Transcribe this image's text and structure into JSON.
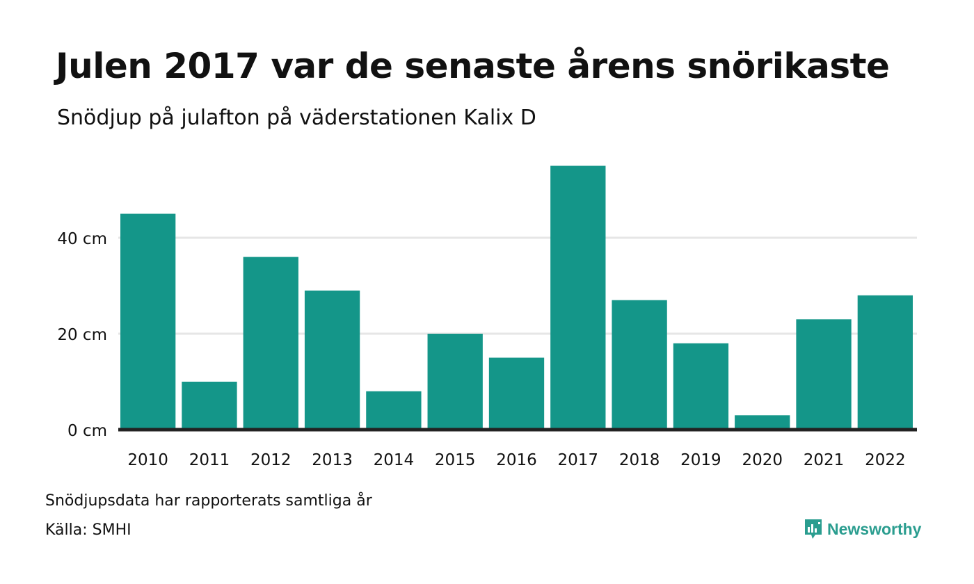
{
  "header": {
    "title": "Julen 2017 var de senaste årens snörikaste",
    "subtitle": "Snödjup på julafton på väderstationen Kalix D"
  },
  "footer": {
    "note": "Snödjupsdata har rapporterats samtliga år",
    "source": "Källa: SMHI",
    "brand": "Newsworthy"
  },
  "colors": {
    "bar": "#149689",
    "baseline": "#222222",
    "grid": "#e6e6e6",
    "brand": "#2a9d8f"
  },
  "chart_data": {
    "type": "bar",
    "categories": [
      "2010",
      "2011",
      "2012",
      "2013",
      "2014",
      "2015",
      "2016",
      "2017",
      "2018",
      "2019",
      "2020",
      "2021",
      "2022"
    ],
    "values": [
      45,
      10,
      36,
      29,
      8,
      20,
      15,
      55,
      27,
      18,
      3,
      23,
      28
    ],
    "unit": "cm",
    "yticks": [
      0,
      20,
      40
    ],
    "ytick_labels": [
      "0 cm",
      "20 cm",
      "40 cm"
    ],
    "ylim": [
      0,
      58
    ],
    "grid": true
  }
}
